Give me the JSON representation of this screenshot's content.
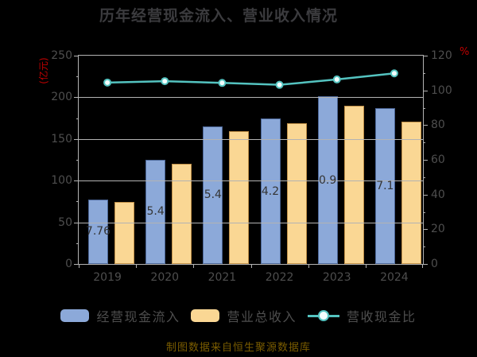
{
  "title": "历年经营现金流入、营业收入情况",
  "footer": "制图数据来自恒生聚源数据库",
  "legend": [
    {
      "label": "经营现金流入",
      "type": "bar",
      "color": "#8CA9D9"
    },
    {
      "label": "营业总收入",
      "type": "bar",
      "color": "#FAD794"
    },
    {
      "label": "营收现金比",
      "type": "line",
      "color": "#54C3C0"
    }
  ],
  "colors": {
    "background": "#000000",
    "title_text": "#3b3b3e",
    "axis_text": "#4e4e4e",
    "grid": "#b3b3b3",
    "bar_cash_fill": "#8CA9D9",
    "bar_cash_border": "#4B6697",
    "bar_revenue_fill": "#FAD794",
    "bar_revenue_border": "#C09048",
    "ratio_line": "#54C3C0",
    "axis_unit_text": "#C00000",
    "footer_text": "#7A5C00"
  },
  "chart_data": {
    "type": "combo_bar_line",
    "title": "历年经营现金流入、营业收入情况",
    "categories": [
      "2019",
      "2020",
      "2021",
      "2022",
      "2023",
      "2024"
    ],
    "series": [
      {
        "name": "经营现金流入",
        "type": "bar",
        "axis": "left",
        "color": "#8CA9D9",
        "border_color": "#4B6697",
        "values": [
          77.76,
          125.4,
          165.4,
          174.2,
          200.9,
          187.1
        ],
        "visible_bar_labels": [
          "7.76",
          "5.4",
          "5.4",
          "4.2",
          "0.9",
          "7.1"
        ]
      },
      {
        "name": "营业总收入",
        "type": "bar",
        "axis": "left",
        "color": "#FAD794",
        "border_color": "#C09048",
        "values": [
          74.4,
          119.9,
          159.2,
          168.9,
          189.9,
          170.8
        ]
      },
      {
        "name": "营收现金比",
        "type": "line",
        "axis": "right",
        "color": "#54C3C0",
        "values": [
          104.5,
          105.3,
          104.3,
          103.2,
          106.3,
          109.8
        ]
      }
    ],
    "left_axis": {
      "unit": "(亿元)",
      "min": 0,
      "max": 250,
      "ticks": [
        0,
        50,
        100,
        150,
        200,
        250
      ]
    },
    "right_axis": {
      "unit": "%",
      "min": 0,
      "max": 120,
      "ticks": [
        0,
        20,
        40,
        60,
        80,
        100,
        120
      ]
    },
    "grid_on": true,
    "legend_position": "bottom"
  }
}
